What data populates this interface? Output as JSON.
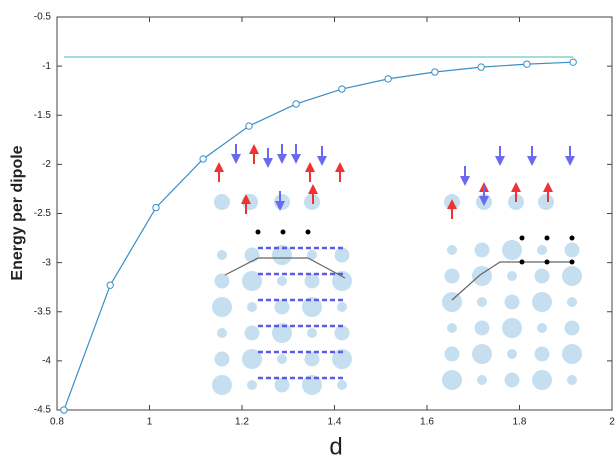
{
  "chart_data": {
    "type": "line",
    "xlabel": "d",
    "ylabel": "Energy per dipole",
    "xlim": [
      0.8,
      2
    ],
    "ylim": [
      -4.5,
      -0.5
    ],
    "xticks": [
      0.8,
      1,
      1.2,
      1.4,
      1.6,
      1.8,
      2
    ],
    "yticks": [
      -4.5,
      -4,
      -3.5,
      -3,
      -2.5,
      -2,
      -1.5,
      -1,
      -0.5
    ],
    "series": [
      {
        "color": "#3a8ec6",
        "marker": "circle",
        "x": [
          0.815,
          0.915,
          1.014,
          1.116,
          1.215,
          1.317,
          1.416,
          1.516,
          1.617,
          1.717,
          1.816,
          1.916
        ],
        "values": [
          -4.5,
          -3.23,
          -2.44,
          -1.945,
          -1.61,
          -1.385,
          -1.233,
          -1.13,
          -1.06,
          -1.01,
          -0.98,
          -0.96
        ]
      },
      {
        "color": "#6cc8c4",
        "marker": "none",
        "x": [
          0.815,
          1.916
        ],
        "values": [
          -0.907,
          -0.907
        ]
      }
    ]
  }
}
